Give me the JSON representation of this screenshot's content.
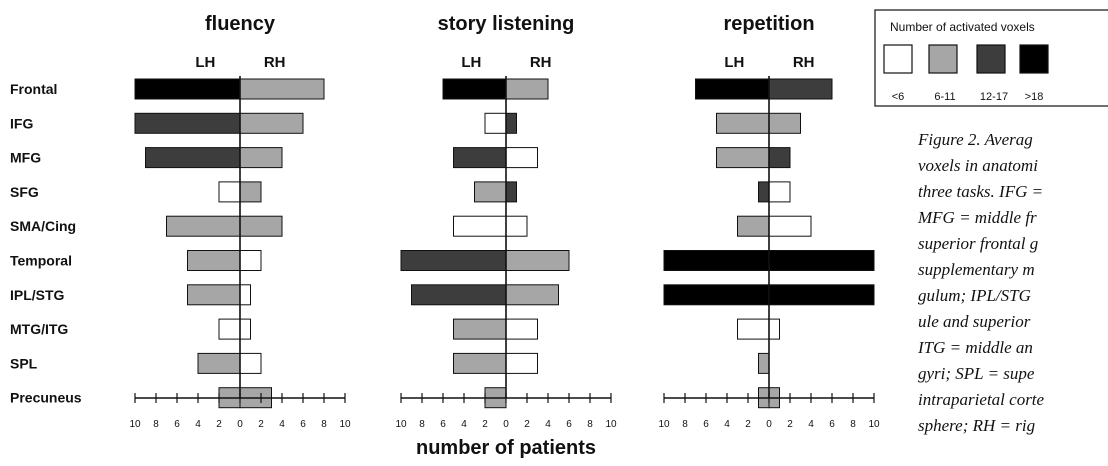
{
  "chart_data": {
    "type": "bar",
    "layout_note": "three back-to-back horizontal bar panels sharing region categories",
    "categories": [
      "Frontal",
      "IFG",
      "MFG",
      "SFG",
      "SMA/Cing",
      "Temporal",
      "IPL/STG",
      "MTG/ITG",
      "SPL",
      "Precuneus"
    ],
    "hemispheres": [
      "LH",
      "RH"
    ],
    "xlabel": "number of patients",
    "xlim": [
      -10,
      10
    ],
    "x_ticks": [
      -10,
      -8,
      -6,
      -4,
      -2,
      0,
      2,
      4,
      6,
      8,
      10
    ],
    "x_tick_labels": [
      "10",
      "8",
      "6",
      "4",
      "2",
      "0",
      "2",
      "4",
      "6",
      "8",
      "10"
    ],
    "legend": {
      "title": "Number of activated voxels",
      "placement": "top-right",
      "classes": [
        {
          "label": "<6",
          "color": "#ffffff"
        },
        {
          "label": "6-11",
          "color": "#a6a6a6"
        },
        {
          "label": "12-17",
          "color": "#3d3d3d"
        },
        {
          "label": ">18",
          "color": "#000000"
        }
      ]
    },
    "panels": [
      {
        "title": "fluency",
        "LH": [
          10,
          10,
          9,
          2,
          7,
          5,
          5,
          2,
          4,
          2
        ],
        "RH": [
          8,
          6,
          4,
          2,
          4,
          2,
          1,
          1,
          2,
          3
        ],
        "LH_class": [
          3,
          2,
          2,
          0,
          1,
          1,
          1,
          0,
          1,
          1
        ],
        "RH_class": [
          1,
          1,
          1,
          1,
          1,
          0,
          0,
          0,
          0,
          1
        ]
      },
      {
        "title": "story listening",
        "LH": [
          6,
          2,
          5,
          3,
          5,
          10,
          9,
          5,
          5,
          2
        ],
        "RH": [
          4,
          1,
          3,
          1,
          2,
          6,
          5,
          3,
          3,
          0
        ],
        "LH_class": [
          3,
          0,
          2,
          1,
          0,
          2,
          2,
          1,
          1,
          1
        ],
        "RH_class": [
          1,
          2,
          0,
          2,
          0,
          1,
          1,
          0,
          0,
          1
        ]
      },
      {
        "title": "repetition",
        "LH": [
          7,
          5,
          5,
          1,
          3,
          10,
          10,
          3,
          1,
          1
        ],
        "RH": [
          6,
          3,
          2,
          2,
          4,
          10,
          10,
          1,
          0,
          1
        ],
        "LH_class": [
          3,
          1,
          1,
          2,
          1,
          3,
          3,
          0,
          1,
          1
        ],
        "RH_class": [
          2,
          1,
          2,
          0,
          0,
          3,
          3,
          0,
          0,
          1
        ]
      }
    ]
  },
  "caption": {
    "lines": [
      "Figure 2. Averag",
      "voxels in anatomi",
      "three tasks. IFG =",
      "MFG = middle fr",
      "superior frontal g",
      "supplementary m",
      "gulum; IPL/STG",
      "ule and superior",
      "ITG = middle an",
      "gyri; SPL = supe",
      "intraparietal corte",
      "sphere; RH = rig"
    ]
  }
}
